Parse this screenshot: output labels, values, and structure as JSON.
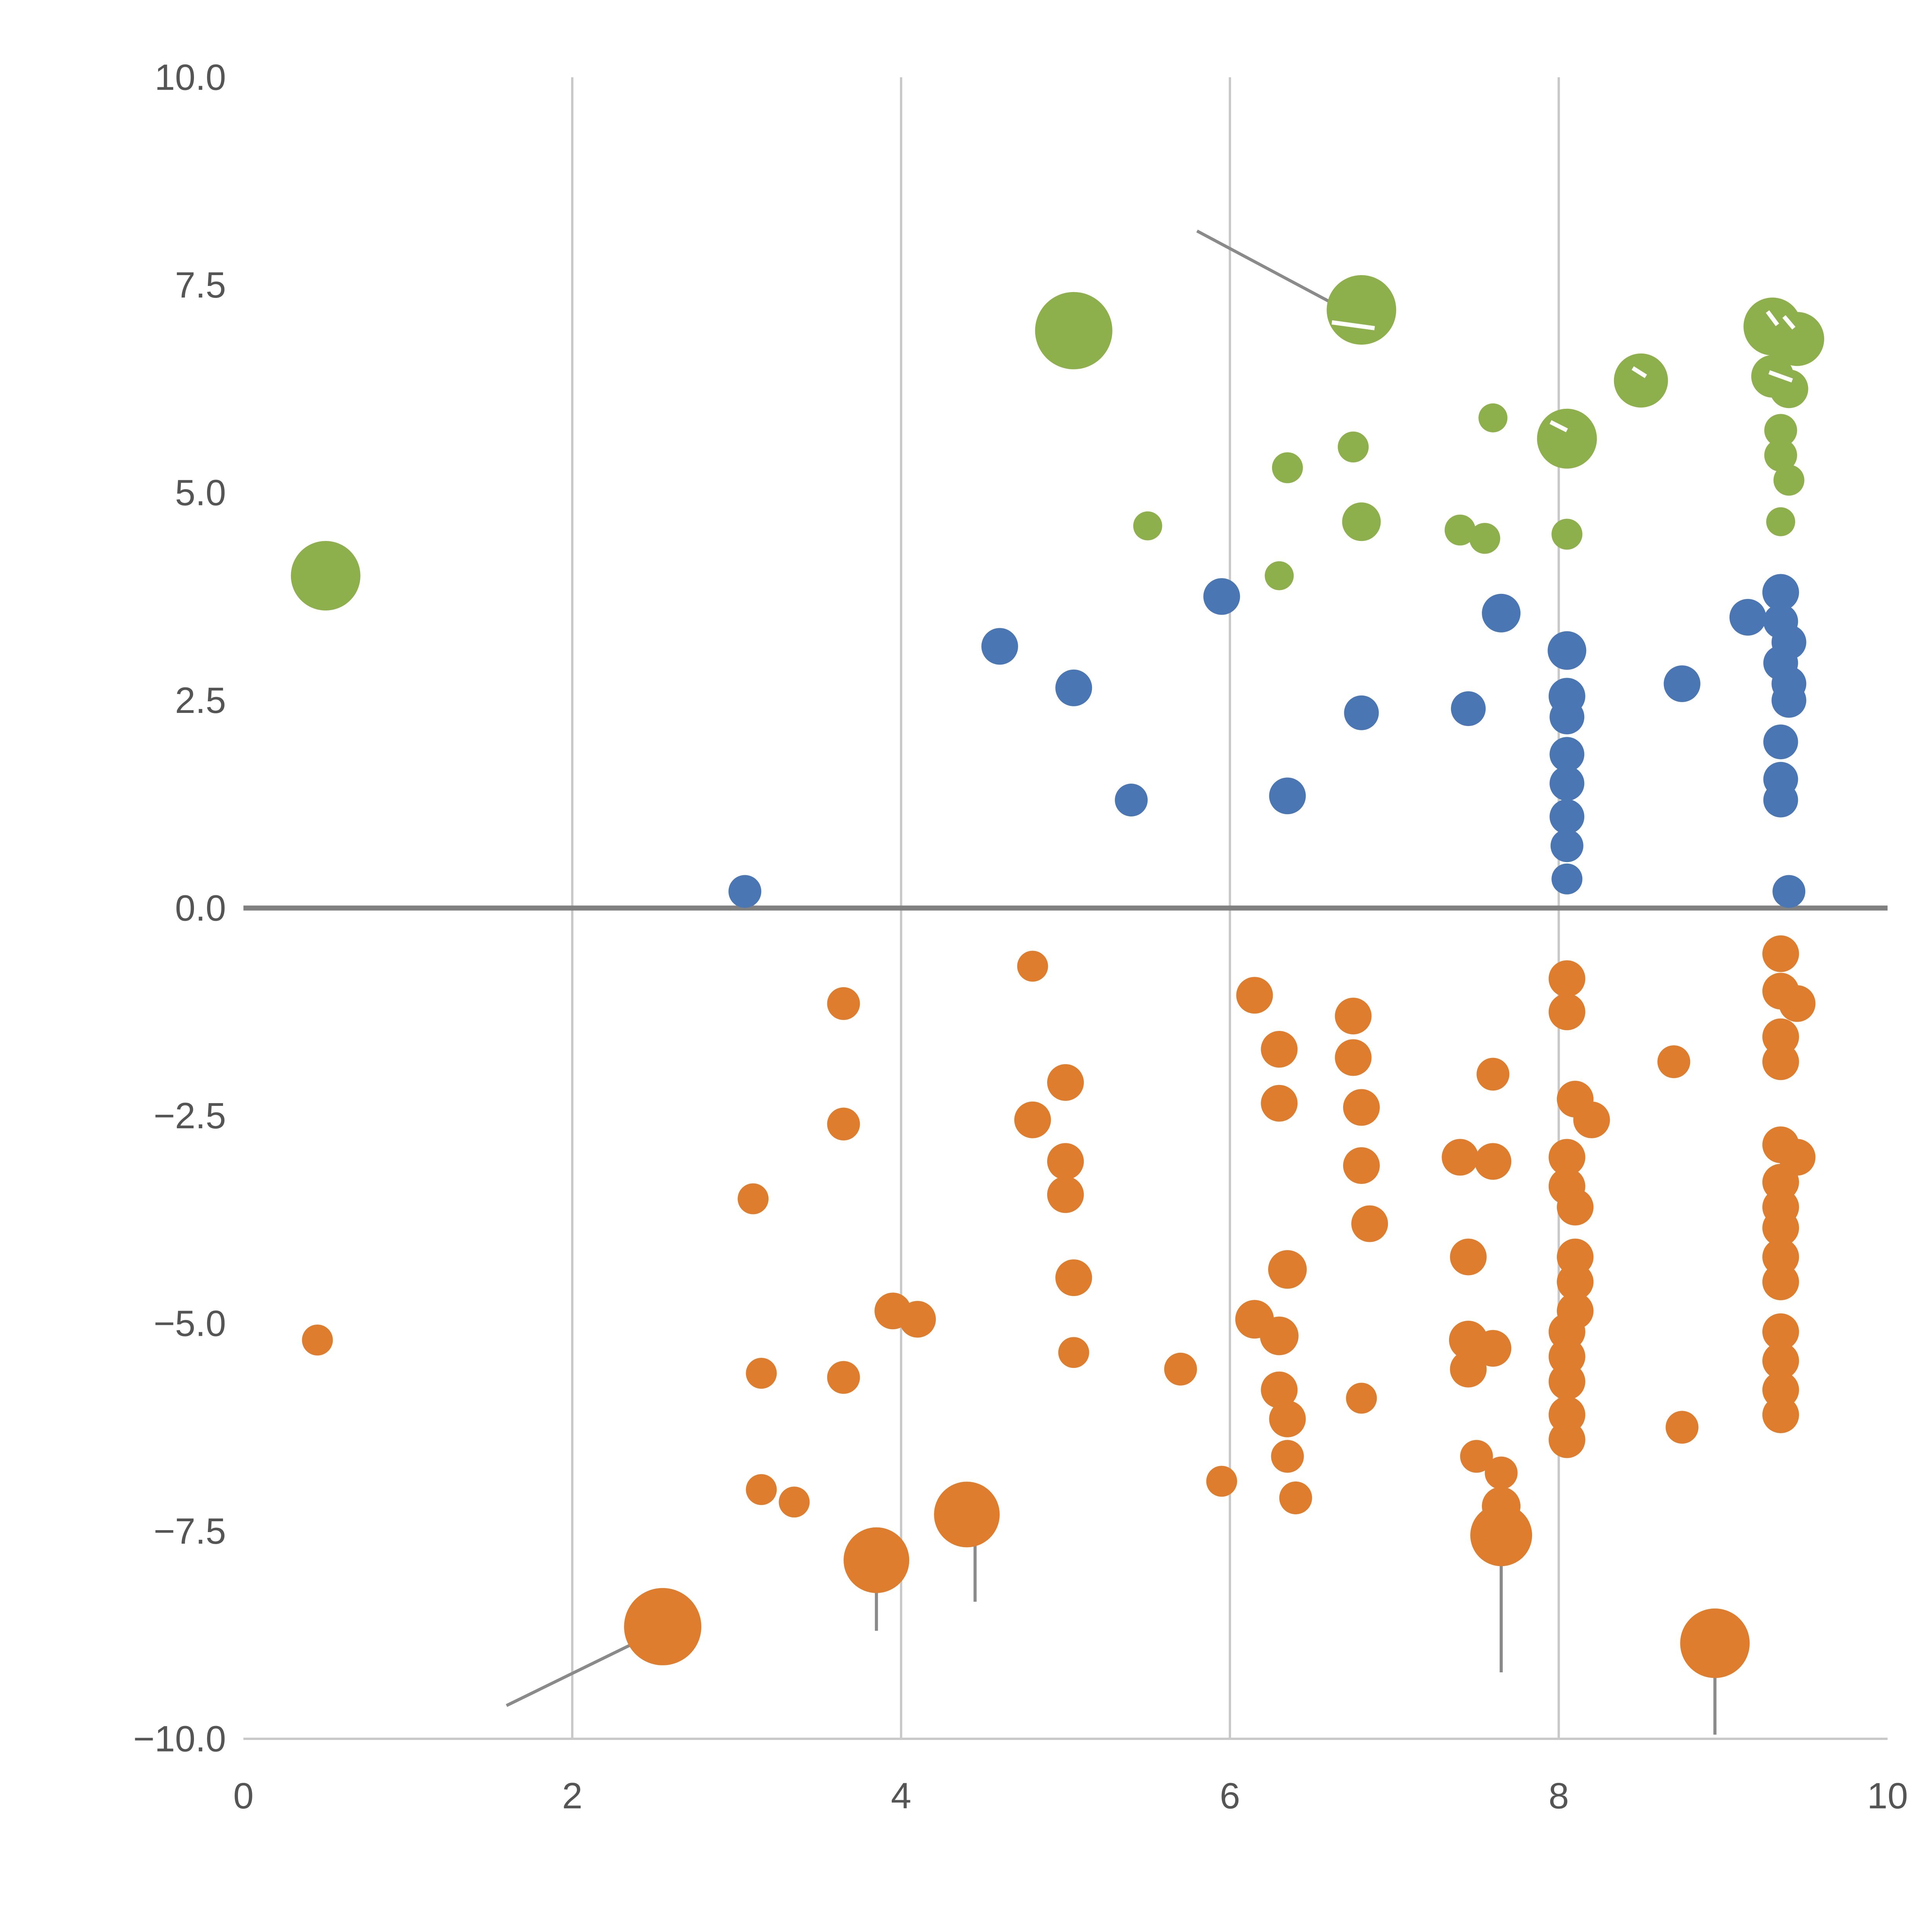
{
  "chart_data": {
    "type": "scatter",
    "title": "",
    "xlabel": "",
    "ylabel": "",
    "xlim": [
      0,
      10
    ],
    "ylim": [
      -10,
      10
    ],
    "x_ticks": [
      0,
      2,
      4,
      6,
      8,
      10
    ],
    "x_tick_labels": [
      "0",
      "2",
      "4",
      "6",
      "8",
      "10"
    ],
    "y_ticks": [
      10.0,
      7.5,
      5.0,
      2.5,
      0.0,
      -2.5,
      -5.0,
      -7.5,
      -10.0
    ],
    "y_tick_labels": [
      "10.0",
      "7.5",
      "5.0",
      "2.5",
      "0.0",
      "−2.5",
      "−5.0",
      "−7.5",
      "−10.0"
    ],
    "grid_x": [
      2,
      4,
      6,
      8
    ],
    "grid_on": true,
    "zero_line": true,
    "legend_position": "none",
    "colors": {
      "green": "#8db04c",
      "blue": "#4a77b4",
      "orange": "#de7d2e",
      "grid": "#c9c9c9",
      "zero": "#808080",
      "rule": "#8a8a8a",
      "white_tick": "#ffffff",
      "axis_text": "#555555",
      "axis_line": "#c9c9c9"
    },
    "series": [
      {
        "name": "green",
        "color_key": "green",
        "points": [
          [
            0.5,
            4.0,
            18
          ],
          [
            5.05,
            6.95,
            20
          ],
          [
            6.8,
            7.2,
            18
          ],
          [
            6.35,
            5.3,
            8
          ],
          [
            6.75,
            5.55,
            8
          ],
          [
            5.5,
            4.6,
            7.5
          ],
          [
            6.3,
            4.0,
            7.5
          ],
          [
            6.8,
            4.65,
            10
          ],
          [
            7.4,
            4.55,
            8
          ],
          [
            7.55,
            4.45,
            8
          ],
          [
            7.6,
            5.9,
            7.5
          ],
          [
            8.05,
            5.65,
            15.5
          ],
          [
            8.05,
            4.5,
            8
          ],
          [
            8.5,
            6.35,
            14
          ],
          [
            9.3,
            7.0,
            15
          ],
          [
            9.45,
            6.85,
            14
          ],
          [
            9.3,
            6.4,
            11
          ],
          [
            9.4,
            6.25,
            10
          ],
          [
            9.35,
            5.75,
            8.5
          ],
          [
            9.35,
            5.45,
            8.5
          ],
          [
            9.4,
            5.15,
            8
          ],
          [
            9.35,
            4.65,
            7.5
          ]
        ]
      },
      {
        "name": "blue",
        "color_key": "blue",
        "points": [
          [
            3.05,
            0.2,
            8.5
          ],
          [
            4.6,
            3.15,
            9.5
          ],
          [
            5.05,
            2.65,
            9.5
          ],
          [
            5.4,
            1.3,
            8.5
          ],
          [
            5.95,
            3.75,
            9.5
          ],
          [
            6.35,
            1.35,
            9.5
          ],
          [
            6.8,
            2.35,
            9
          ],
          [
            7.45,
            2.4,
            9
          ],
          [
            7.65,
            3.55,
            10
          ],
          [
            8.05,
            3.1,
            10
          ],
          [
            8.05,
            2.55,
            9.5
          ],
          [
            8.05,
            2.3,
            9
          ],
          [
            8.05,
            1.85,
            9
          ],
          [
            8.05,
            1.5,
            9
          ],
          [
            8.05,
            1.1,
            9
          ],
          [
            8.05,
            0.75,
            8.5
          ],
          [
            8.05,
            0.35,
            8
          ],
          [
            8.75,
            2.7,
            9.5
          ],
          [
            9.15,
            3.5,
            9.5
          ],
          [
            9.35,
            3.8,
            9.5
          ],
          [
            9.35,
            3.45,
            9
          ],
          [
            9.4,
            3.2,
            9
          ],
          [
            9.35,
            2.95,
            9
          ],
          [
            9.4,
            2.7,
            9
          ],
          [
            9.4,
            2.5,
            9
          ],
          [
            9.35,
            2.0,
            9
          ],
          [
            9.35,
            1.55,
            9
          ],
          [
            9.35,
            1.3,
            9
          ],
          [
            9.4,
            0.2,
            8.5
          ]
        ]
      },
      {
        "name": "orange",
        "color_key": "orange",
        "points": [
          [
            0.45,
            -5.2,
            8
          ],
          [
            2.55,
            -8.65,
            20
          ],
          [
            3.1,
            -3.5,
            8
          ],
          [
            3.15,
            -5.6,
            8
          ],
          [
            3.15,
            -7.0,
            8
          ],
          [
            3.35,
            -7.15,
            8
          ],
          [
            3.65,
            -1.15,
            8.5
          ],
          [
            3.65,
            -2.6,
            8.5
          ],
          [
            3.65,
            -5.65,
            8.5
          ],
          [
            3.85,
            -7.85,
            17
          ],
          [
            3.95,
            -4.85,
            9.5
          ],
          [
            4.1,
            -4.95,
            9.5
          ],
          [
            4.4,
            -7.3,
            17
          ],
          [
            4.8,
            -0.7,
            8
          ],
          [
            4.8,
            -2.55,
            9.5
          ],
          [
            5.0,
            -2.1,
            9.5
          ],
          [
            5.0,
            -3.05,
            9.5
          ],
          [
            5.0,
            -3.45,
            9.5
          ],
          [
            5.05,
            -4.45,
            9.5
          ],
          [
            5.05,
            -5.35,
            8
          ],
          [
            5.7,
            -5.55,
            8.5
          ],
          [
            5.95,
            -6.9,
            8
          ],
          [
            6.15,
            -1.05,
            9.5
          ],
          [
            6.3,
            -1.7,
            9.5
          ],
          [
            6.3,
            -2.35,
            9.5
          ],
          [
            6.15,
            -4.95,
            10
          ],
          [
            6.3,
            -5.15,
            10
          ],
          [
            6.35,
            -4.35,
            10
          ],
          [
            6.3,
            -5.8,
            9.5
          ],
          [
            6.35,
            -6.15,
            9.5
          ],
          [
            6.35,
            -6.6,
            8.5
          ],
          [
            6.4,
            -7.1,
            8.5
          ],
          [
            6.75,
            -1.3,
            9.5
          ],
          [
            6.75,
            -1.8,
            9.5
          ],
          [
            6.8,
            -2.4,
            9.5
          ],
          [
            6.8,
            -3.1,
            9.5
          ],
          [
            6.85,
            -3.8,
            9.5
          ],
          [
            6.8,
            -5.9,
            8
          ],
          [
            7.4,
            -3.0,
            9.5
          ],
          [
            7.45,
            -4.2,
            9.5
          ],
          [
            7.45,
            -5.2,
            10
          ],
          [
            7.45,
            -5.55,
            9.5
          ],
          [
            7.5,
            -6.6,
            8.5
          ],
          [
            7.6,
            -2.0,
            8.5
          ],
          [
            7.6,
            -3.05,
            9.5
          ],
          [
            7.6,
            -5.3,
            9.5
          ],
          [
            7.65,
            -6.8,
            8.5
          ],
          [
            7.65,
            -7.2,
            10
          ],
          [
            7.65,
            -7.55,
            16
          ],
          [
            8.05,
            -0.85,
            9.5
          ],
          [
            8.05,
            -1.25,
            9.5
          ],
          [
            8.1,
            -2.3,
            9.5
          ],
          [
            8.2,
            -2.55,
            9.5
          ],
          [
            8.05,
            -3.0,
            9.5
          ],
          [
            8.05,
            -3.35,
            9.5
          ],
          [
            8.1,
            -3.6,
            9.5
          ],
          [
            8.1,
            -4.2,
            9.5
          ],
          [
            8.1,
            -4.5,
            9.5
          ],
          [
            8.1,
            -4.85,
            9.5
          ],
          [
            8.05,
            -5.1,
            9.5
          ],
          [
            8.05,
            -5.4,
            9.5
          ],
          [
            8.05,
            -5.7,
            9.5
          ],
          [
            8.05,
            -6.1,
            9.5
          ],
          [
            8.05,
            -6.4,
            9.5
          ],
          [
            8.7,
            -1.85,
            8.5
          ],
          [
            8.75,
            -6.25,
            8.5
          ],
          [
            8.95,
            -8.85,
            18
          ],
          [
            9.35,
            -0.55,
            9.5
          ],
          [
            9.35,
            -1.0,
            9.5
          ],
          [
            9.45,
            -1.15,
            9.5
          ],
          [
            9.35,
            -1.55,
            9.5
          ],
          [
            9.35,
            -1.85,
            9.5
          ],
          [
            9.35,
            -2.85,
            9.5
          ],
          [
            9.45,
            -3.0,
            9.5
          ],
          [
            9.35,
            -3.3,
            9.5
          ],
          [
            9.35,
            -3.6,
            9.5
          ],
          [
            9.35,
            -3.85,
            9.5
          ],
          [
            9.35,
            -4.2,
            9.5
          ],
          [
            9.35,
            -4.5,
            9.5
          ],
          [
            9.35,
            -5.1,
            9.5
          ],
          [
            9.35,
            -5.45,
            9.5
          ],
          [
            9.35,
            -5.8,
            9.5
          ],
          [
            9.35,
            -6.1,
            9.5
          ]
        ]
      }
    ],
    "rules": [
      [
        5.8,
        8.15,
        6.7,
        7.2
      ],
      [
        1.6,
        -9.6,
        2.53,
        -8.7
      ],
      [
        3.85,
        -7.85,
        3.85,
        -8.7
      ],
      [
        4.45,
        -7.35,
        4.45,
        -8.35
      ],
      [
        7.65,
        -7.6,
        7.65,
        -9.2
      ],
      [
        8.95,
        -8.95,
        8.95,
        -9.95
      ]
    ],
    "white_ticks": [
      [
        6.62,
        7.05,
        6.88,
        6.98
      ],
      [
        7.95,
        5.85,
        8.05,
        5.75
      ],
      [
        8.45,
        6.5,
        8.53,
        6.4
      ],
      [
        9.27,
        7.18,
        9.33,
        7.02
      ],
      [
        9.37,
        7.12,
        9.43,
        6.98
      ],
      [
        9.28,
        6.45,
        9.42,
        6.35
      ],
      [
        3.88,
        -8.6,
        3.98,
        -8.52
      ]
    ]
  }
}
